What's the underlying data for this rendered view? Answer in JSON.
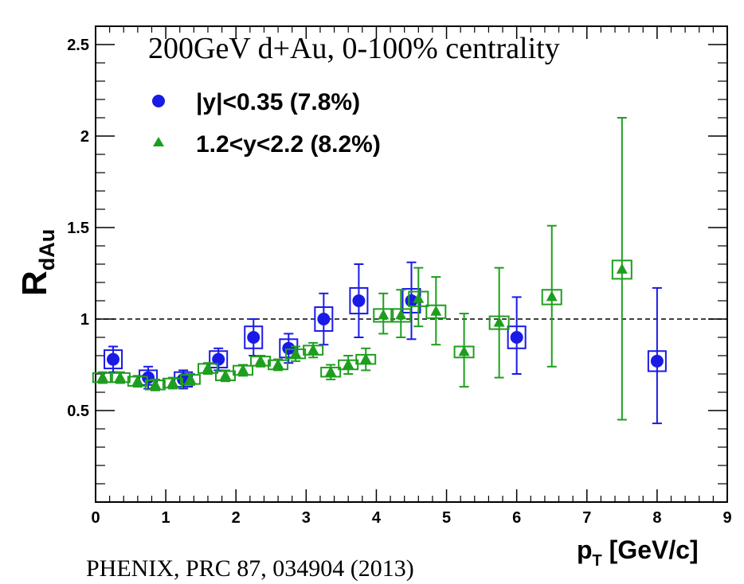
{
  "chart_data": {
    "type": "scatter",
    "title": "200GeV d+Au, 0-100% centrality",
    "citation": "PHENIX, PRC 87, 034904 (2013)",
    "xlabel": "p",
    "xlabel_sub": "T",
    "xlabel_unit": " [GeV/c]",
    "ylabel": "R",
    "ylabel_sub": "dAu",
    "xlim": [
      0,
      9
    ],
    "ylim": [
      0,
      2.6
    ],
    "x_ticks": [
      "0",
      "1",
      "2",
      "3",
      "4",
      "5",
      "6",
      "7",
      "8",
      "9"
    ],
    "y_ticks": [
      "0.5",
      "1",
      "1.5",
      "2",
      "2.5"
    ],
    "reference_line": 1.0,
    "legend_position": "top-left",
    "series": [
      {
        "name": "|y|<0.35 (7.8%)",
        "marker": "circle",
        "color": "#1a1ae6",
        "points": [
          {
            "x": 0.25,
            "y": 0.78,
            "err_lo": 0.07,
            "err_hi": 0.07,
            "sys": 0.1
          },
          {
            "x": 0.75,
            "y": 0.68,
            "err_lo": 0.06,
            "err_hi": 0.06,
            "sys": 0.08
          },
          {
            "x": 1.25,
            "y": 0.67,
            "err_lo": 0.05,
            "err_hi": 0.05,
            "sys": 0.08
          },
          {
            "x": 1.75,
            "y": 0.78,
            "err_lo": 0.06,
            "err_hi": 0.06,
            "sys": 0.09
          },
          {
            "x": 2.25,
            "y": 0.9,
            "err_lo": 0.1,
            "err_hi": 0.1,
            "sys": 0.12
          },
          {
            "x": 2.75,
            "y": 0.84,
            "err_lo": 0.08,
            "err_hi": 0.08,
            "sys": 0.1
          },
          {
            "x": 3.25,
            "y": 1.0,
            "err_lo": 0.14,
            "err_hi": 0.14,
            "sys": 0.13
          },
          {
            "x": 3.75,
            "y": 1.1,
            "err_lo": 0.2,
            "err_hi": 0.2,
            "sys": 0.14
          },
          {
            "x": 4.5,
            "y": 1.1,
            "err_lo": 0.21,
            "err_hi": 0.21,
            "sys": 0.13
          },
          {
            "x": 6.0,
            "y": 0.9,
            "err_lo": 0.2,
            "err_hi": 0.22,
            "sys": 0.12
          },
          {
            "x": 8.0,
            "y": 0.77,
            "err_lo": 0.34,
            "err_hi": 0.4,
            "sys": 0.11
          }
        ]
      },
      {
        "name": "1.2<y<2.2 (8.2%)",
        "marker": "triangle",
        "color": "#1e9e1e",
        "points": [
          {
            "x": 0.1,
            "y": 0.68,
            "err_lo": 0.03,
            "err_hi": 0.03,
            "sys": 0.05
          },
          {
            "x": 0.35,
            "y": 0.68,
            "err_lo": 0.03,
            "err_hi": 0.03,
            "sys": 0.05
          },
          {
            "x": 0.6,
            "y": 0.66,
            "err_lo": 0.03,
            "err_hi": 0.03,
            "sys": 0.05
          },
          {
            "x": 0.85,
            "y": 0.64,
            "err_lo": 0.03,
            "err_hi": 0.03,
            "sys": 0.05
          },
          {
            "x": 1.1,
            "y": 0.65,
            "err_lo": 0.03,
            "err_hi": 0.03,
            "sys": 0.05
          },
          {
            "x": 1.35,
            "y": 0.67,
            "err_lo": 0.03,
            "err_hi": 0.03,
            "sys": 0.05
          },
          {
            "x": 1.6,
            "y": 0.73,
            "err_lo": 0.03,
            "err_hi": 0.03,
            "sys": 0.05
          },
          {
            "x": 1.85,
            "y": 0.69,
            "err_lo": 0.03,
            "err_hi": 0.03,
            "sys": 0.05
          },
          {
            "x": 2.1,
            "y": 0.72,
            "err_lo": 0.03,
            "err_hi": 0.03,
            "sys": 0.05
          },
          {
            "x": 2.35,
            "y": 0.77,
            "err_lo": 0.03,
            "err_hi": 0.03,
            "sys": 0.05
          },
          {
            "x": 2.6,
            "y": 0.75,
            "err_lo": 0.03,
            "err_hi": 0.03,
            "sys": 0.05
          },
          {
            "x": 2.85,
            "y": 0.81,
            "err_lo": 0.04,
            "err_hi": 0.04,
            "sys": 0.05
          },
          {
            "x": 3.1,
            "y": 0.83,
            "err_lo": 0.04,
            "err_hi": 0.04,
            "sys": 0.05
          },
          {
            "x": 3.35,
            "y": 0.71,
            "err_lo": 0.04,
            "err_hi": 0.04,
            "sys": 0.05
          },
          {
            "x": 3.6,
            "y": 0.75,
            "err_lo": 0.05,
            "err_hi": 0.05,
            "sys": 0.05
          },
          {
            "x": 3.85,
            "y": 0.78,
            "err_lo": 0.06,
            "err_hi": 0.06,
            "sys": 0.05
          },
          {
            "x": 4.1,
            "y": 1.02,
            "err_lo": 0.1,
            "err_hi": 0.12,
            "sys": 0.07
          },
          {
            "x": 4.35,
            "y": 1.02,
            "err_lo": 0.12,
            "err_hi": 0.14,
            "sys": 0.07
          },
          {
            "x": 4.6,
            "y": 1.11,
            "err_lo": 0.15,
            "err_hi": 0.17,
            "sys": 0.08
          },
          {
            "x": 4.85,
            "y": 1.04,
            "err_lo": 0.18,
            "err_hi": 0.19,
            "sys": 0.07
          },
          {
            "x": 5.25,
            "y": 0.82,
            "err_lo": 0.19,
            "err_hi": 0.21,
            "sys": 0.06
          },
          {
            "x": 5.75,
            "y": 0.98,
            "err_lo": 0.3,
            "err_hi": 0.3,
            "sys": 0.07
          },
          {
            "x": 6.5,
            "y": 1.12,
            "err_lo": 0.38,
            "err_hi": 0.39,
            "sys": 0.08
          },
          {
            "x": 7.5,
            "y": 1.27,
            "err_lo": 0.82,
            "err_hi": 0.83,
            "sys": 0.1
          }
        ]
      }
    ]
  }
}
